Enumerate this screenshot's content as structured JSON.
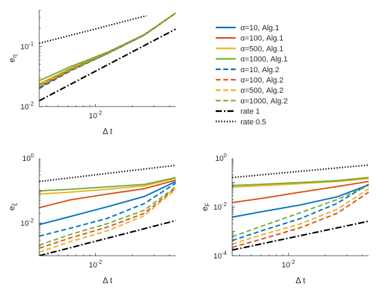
{
  "chart_data": [
    {
      "type": "line",
      "id": "eta",
      "xscale": "log",
      "yscale": "log",
      "xlim": [
        0.0035,
        0.045
      ],
      "ylim": [
        0.01,
        0.4
      ],
      "xlabel": {
        "main": "Δ t"
      },
      "ylabel": {
        "main": "e",
        "sub": "η"
      },
      "xticks": [
        {
          "v": 0.01,
          "b": "10",
          "e": "-2"
        }
      ],
      "yticks": [
        {
          "v": 0.01,
          "b": "10",
          "e": "-2"
        },
        {
          "v": 0.1,
          "b": "10",
          "e": "-1"
        }
      ],
      "x": [
        0.0035,
        0.00625,
        0.0125,
        0.025,
        0.045
      ],
      "series": [
        {
          "name": "α=10, Alg.1",
          "values": [
            0.021,
            0.04,
            0.076,
            0.155,
            0.36
          ]
        },
        {
          "name": "α=100, Alg.1",
          "values": [
            0.022,
            0.041,
            0.077,
            0.156,
            0.36
          ]
        },
        {
          "name": "α=500, Alg.1",
          "values": [
            0.024,
            0.043,
            0.078,
            0.157,
            0.36
          ]
        },
        {
          "name": "α=1000, Alg.1",
          "values": [
            0.027,
            0.046,
            0.08,
            0.158,
            0.36
          ]
        },
        {
          "name": "α=10, Alg.2",
          "values": [
            0.02,
            0.039,
            0.076,
            0.155,
            0.36
          ]
        },
        {
          "name": "α=100, Alg.2",
          "values": [
            0.021,
            0.04,
            0.077,
            0.156,
            0.36
          ]
        },
        {
          "name": "α=500, Alg.2",
          "values": [
            0.022,
            0.041,
            0.078,
            0.157,
            0.36
          ]
        },
        {
          "name": "α=1000, Alg.2",
          "values": [
            0.023,
            0.042,
            0.079,
            0.158,
            0.36
          ]
        },
        {
          "name": "rate 1",
          "x": [
            0.0035,
            0.045
          ],
          "values": [
            0.0125,
            0.195
          ]
        },
        {
          "name": "rate 0.5",
          "x": [
            0.0035,
            0.026
          ],
          "values": [
            0.113,
            0.325
          ]
        }
      ]
    },
    {
      "type": "line",
      "id": "xi",
      "xscale": "log",
      "yscale": "log",
      "xlim": [
        0.0035,
        0.045
      ],
      "ylim": [
        0.001,
        1
      ],
      "xlabel": {
        "main": "Δ t"
      },
      "ylabel": {
        "main": "e",
        "sub": "ξ"
      },
      "xticks": [
        {
          "v": 0.01,
          "b": "10",
          "e": "-2"
        }
      ],
      "yticks": [
        {
          "v": 0.01,
          "b": "10",
          "e": "-2"
        },
        {
          "v": 1,
          "b": "10",
          "e": "0"
        }
      ],
      "x": [
        0.0035,
        0.00625,
        0.0125,
        0.025,
        0.045
      ],
      "series": [
        {
          "name": "α=10, Alg.1",
          "values": [
            0.009,
            0.016,
            0.032,
            0.066,
            0.19
          ]
        },
        {
          "name": "α=100, Alg.1",
          "values": [
            0.03,
            0.052,
            0.078,
            0.115,
            0.21
          ]
        },
        {
          "name": "α=500, Alg.1",
          "values": [
            0.078,
            0.09,
            0.11,
            0.14,
            0.24
          ]
        },
        {
          "name": "α=1000, Alg.1",
          "values": [
            0.098,
            0.11,
            0.13,
            0.155,
            0.25
          ]
        },
        {
          "name": "α=10, Alg.2",
          "values": [
            0.004,
            0.007,
            0.014,
            0.04,
            0.17
          ]
        },
        {
          "name": "α=100, Alg.2",
          "values": [
            0.0017,
            0.0035,
            0.0076,
            0.02,
            0.12
          ]
        },
        {
          "name": "α=500, Alg.2",
          "values": [
            0.0013,
            0.0027,
            0.0058,
            0.017,
            0.11
          ]
        },
        {
          "name": "α=1000, Alg.2",
          "values": [
            0.0021,
            0.0045,
            0.0096,
            0.025,
            0.13
          ]
        },
        {
          "name": "rate 1",
          "x": [
            0.0035,
            0.045
          ],
          "values": [
            0.001,
            0.012
          ]
        },
        {
          "name": "rate 0.5",
          "x": [
            0.0035,
            0.045
          ],
          "values": [
            0.19,
            0.6
          ]
        }
      ]
    },
    {
      "type": "line",
      "id": "F",
      "xscale": "log",
      "yscale": "log",
      "xlim": [
        0.0035,
        0.045
      ],
      "ylim": [
        0.0001,
        1
      ],
      "xlabel": {
        "main": "Δ t"
      },
      "ylabel": {
        "main": "e",
        "sub": "F"
      },
      "xticks": [
        {
          "v": 0.01,
          "b": "10",
          "e": "-2"
        }
      ],
      "yticks": [
        {
          "v": 0.0001,
          "b": "10",
          "e": "-4"
        },
        {
          "v": 0.01,
          "b": "10",
          "e": "-2"
        },
        {
          "v": 1,
          "b": "10",
          "e": "0"
        }
      ],
      "x": [
        0.0035,
        0.00625,
        0.0125,
        0.025,
        0.045
      ],
      "series": [
        {
          "name": "α=10, Alg.1",
          "values": [
            0.0038,
            0.0065,
            0.012,
            0.026,
            0.08
          ]
        },
        {
          "name": "α=100, Alg.1",
          "values": [
            0.015,
            0.023,
            0.04,
            0.068,
            0.11
          ]
        },
        {
          "name": "α=500, Alg.1",
          "values": [
            0.065,
            0.074,
            0.09,
            0.11,
            0.145
          ]
        },
        {
          "name": "α=1000, Alg.1",
          "values": [
            0.075,
            0.085,
            0.1,
            0.12,
            0.16
          ]
        },
        {
          "name": "α=10, Alg.2",
          "values": [
            0.00042,
            0.0011,
            0.0033,
            0.014,
            0.085
          ]
        },
        {
          "name": "α=100, Alg.2",
          "values": [
            0.00022,
            0.0005,
            0.0014,
            0.0055,
            0.04
          ]
        },
        {
          "name": "α=500, Alg.2",
          "values": [
            0.0003,
            0.00075,
            0.002,
            0.008,
            0.055
          ]
        },
        {
          "name": "α=1000, Alg.2",
          "values": [
            0.0006,
            0.0017,
            0.0058,
            0.02,
            0.075
          ]
        },
        {
          "name": "rate 1",
          "x": [
            0.0035,
            0.045
          ],
          "values": [
            0.00017,
            0.0026
          ]
        },
        {
          "name": "rate 0.5",
          "x": [
            0.0035,
            0.045
          ],
          "values": [
            0.16,
            0.52
          ]
        }
      ]
    }
  ],
  "legend": {
    "placement": "top-right",
    "entries": [
      {
        "label": "α=10, Alg.1",
        "color": "#0072BD",
        "dash": "solid"
      },
      {
        "label": "α=100, Alg.1",
        "color": "#D95319",
        "dash": "solid"
      },
      {
        "label": "α=500, Alg.1",
        "color": "#EDB120",
        "dash": "solid"
      },
      {
        "label": "α=1000, Alg.1",
        "color": "#77AC30",
        "dash": "solid"
      },
      {
        "label": "α=10, Alg.2",
        "color": "#0072BD",
        "dash": "dashed"
      },
      {
        "label": "α=100, Alg.2",
        "color": "#D95319",
        "dash": "dashed"
      },
      {
        "label": "α=500, Alg.2",
        "color": "#EDB120",
        "dash": "dashed"
      },
      {
        "label": "α=1000, Alg.2",
        "color": "#77AC30",
        "dash": "dashed"
      },
      {
        "label": "rate 1",
        "color": "#000000",
        "dash": "dashdot"
      },
      {
        "label": "rate 0.5",
        "color": "#000000",
        "dash": "dotted"
      }
    ]
  },
  "colors": {
    "alpha10": "#0072BD",
    "alpha100": "#D95319",
    "alpha500": "#EDB120",
    "alpha1000": "#77AC30",
    "rate": "#000000",
    "axes": "#262626"
  }
}
